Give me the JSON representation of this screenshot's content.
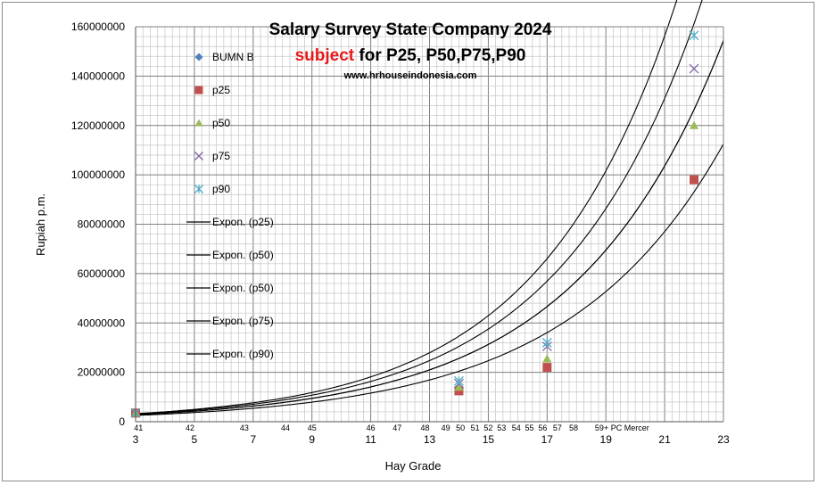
{
  "chart_data": {
    "type": "scatter",
    "title": "Salary Survey State Company 2024",
    "subtitle_accent": "subject",
    "subtitle_rest": " for P25, P50,P75,P90",
    "source": "www.hrhouseindonesia.com",
    "xlabel": "Hay Grade",
    "ylabel": "Rupiah p.m.",
    "xlim": [
      3,
      23
    ],
    "ylim": [
      0,
      160000000
    ],
    "grid": true,
    "legend_position": "left-inside",
    "x_ticks": [
      3,
      5,
      7,
      9,
      11,
      13,
      15,
      17,
      19,
      21,
      23
    ],
    "y_ticks": [
      0,
      20000000,
      40000000,
      60000000,
      80000000,
      100000000,
      120000000,
      140000000,
      160000000
    ],
    "secondary_x_labels": [
      {
        "x": 3.1,
        "label": "41"
      },
      {
        "x": 4.85,
        "label": "42"
      },
      {
        "x": 6.7,
        "label": "43"
      },
      {
        "x": 8.1,
        "label": "44"
      },
      {
        "x": 9.0,
        "label": "45"
      },
      {
        "x": 11.0,
        "label": "46"
      },
      {
        "x": 11.9,
        "label": "47"
      },
      {
        "x": 12.85,
        "label": "48"
      },
      {
        "x": 13.55,
        "label": "49"
      },
      {
        "x": 14.05,
        "label": "50"
      },
      {
        "x": 14.55,
        "label": "51"
      },
      {
        "x": 15.0,
        "label": "52"
      },
      {
        "x": 15.45,
        "label": "53"
      },
      {
        "x": 15.95,
        "label": "54"
      },
      {
        "x": 16.4,
        "label": "55"
      },
      {
        "x": 16.85,
        "label": "56"
      },
      {
        "x": 17.35,
        "label": "57"
      },
      {
        "x": 17.9,
        "label": "58"
      },
      {
        "x": 19.55,
        "label": "59+ PC Mercer"
      }
    ],
    "series": [
      {
        "name": "BUMN B",
        "marker": "diamond",
        "color": "#4f81bd",
        "points": [
          [
            3,
            3500000
          ],
          [
            14,
            12500000
          ],
          [
            17,
            22000000
          ],
          [
            22,
            98000000
          ]
        ]
      },
      {
        "name": "p25",
        "marker": "square",
        "color": "#c0504d",
        "points": [
          [
            3,
            3500000
          ],
          [
            14,
            12500000
          ],
          [
            17,
            22000000
          ],
          [
            22,
            98000000
          ]
        ]
      },
      {
        "name": "p50",
        "marker": "triangle",
        "color": "#9bbb59",
        "points": [
          [
            3,
            3500000
          ],
          [
            14,
            14000000
          ],
          [
            17,
            25500000
          ],
          [
            22,
            120000000
          ]
        ]
      },
      {
        "name": "p75",
        "marker": "x",
        "color": "#8064a2",
        "points": [
          [
            3,
            3500000
          ],
          [
            14,
            15500000
          ],
          [
            17,
            30500000
          ],
          [
            22,
            143000000
          ]
        ]
      },
      {
        "name": "p90",
        "marker": "star",
        "color": "#4bacc6",
        "points": [
          [
            3,
            3500000
          ],
          [
            14,
            16500000
          ],
          [
            17,
            32000000
          ],
          [
            22,
            156500000
          ]
        ]
      }
    ],
    "trendlines": [
      {
        "name": "Expon. (p25)",
        "color": "#000000",
        "a": 1440000,
        "b": 0.1895
      },
      {
        "name": "Expon. (p50)",
        "color": "#000000",
        "a": 1570000,
        "b": 0.1995
      },
      {
        "name": "Expon. (p50)",
        "color": "#000000",
        "a": 1570000,
        "b": 0.1995
      },
      {
        "name": "Expon. (p75)",
        "color": "#000000",
        "a": 1650000,
        "b": 0.2083
      },
      {
        "name": "Expon. (p90)",
        "color": "#000000",
        "a": 1700000,
        "b": 0.2153
      }
    ]
  }
}
